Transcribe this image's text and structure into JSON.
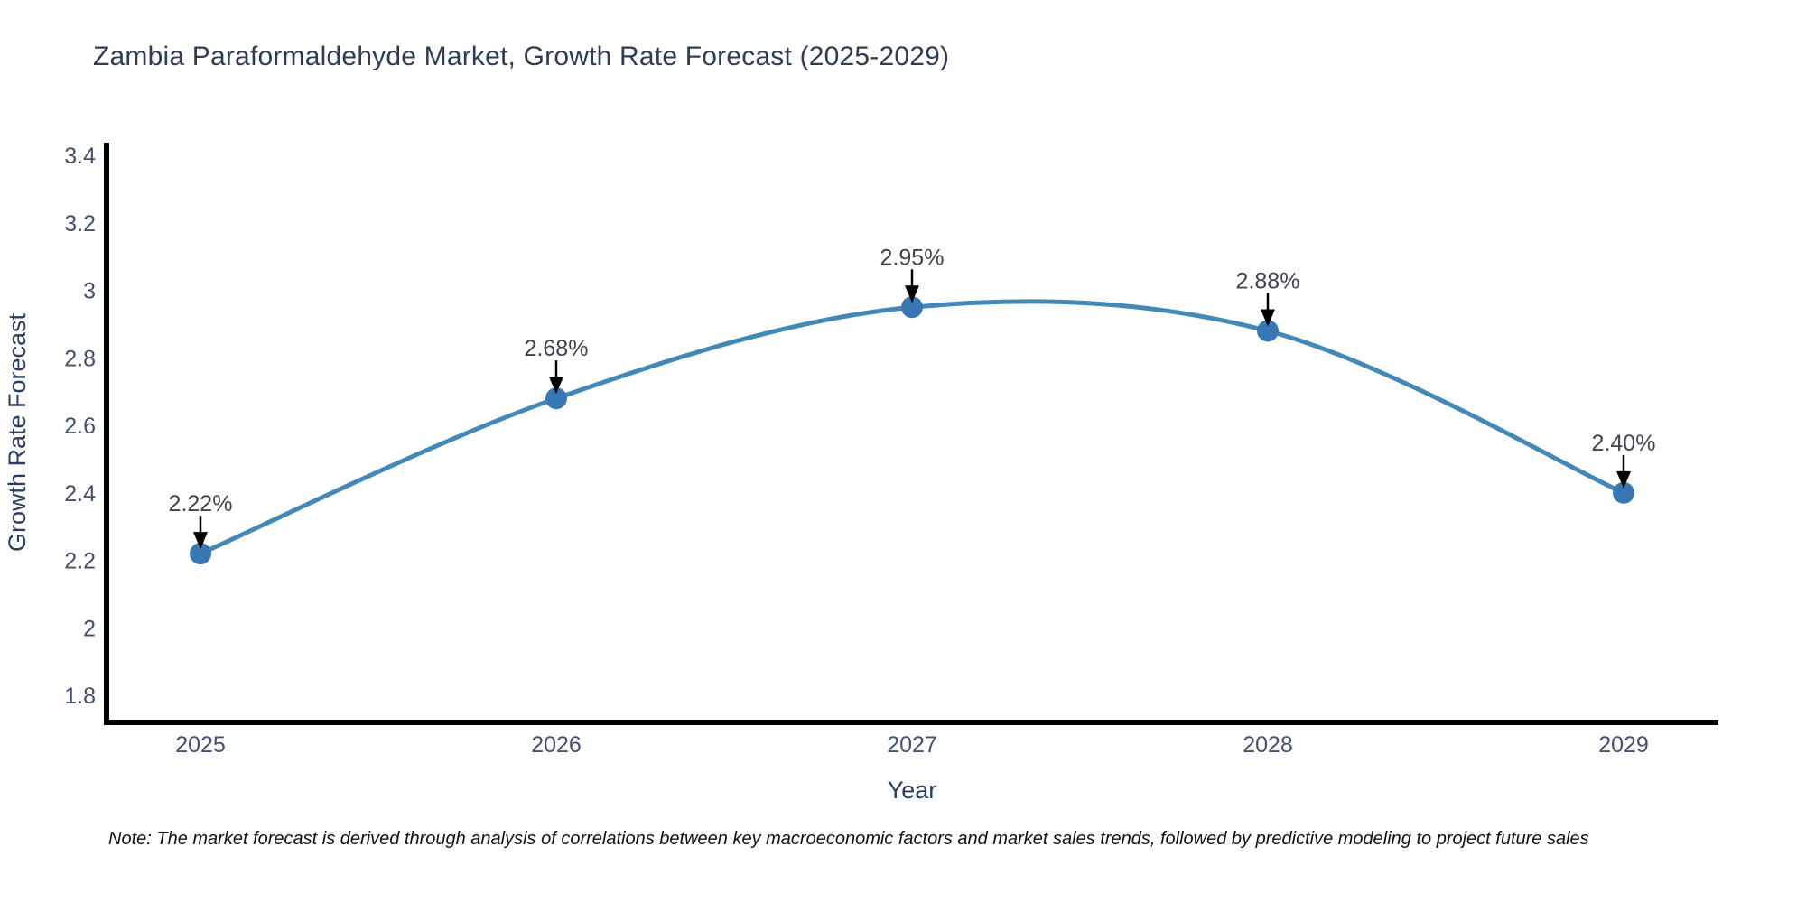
{
  "title": "Zambia Paraformaldehyde Market, Growth Rate Forecast (2025-2029)",
  "note": "Note: The market forecast is derived through analysis of correlations between key macroeconomic factors and market sales trends, followed by predictive modeling to project future sales",
  "chart_data": {
    "type": "line",
    "title": "Zambia Paraformaldehyde Market, Growth Rate Forecast (2025-2029)",
    "xlabel": "Year",
    "ylabel": "Growth Rate Forecast",
    "categories": [
      "2025",
      "2026",
      "2027",
      "2028",
      "2029"
    ],
    "series": [
      {
        "name": "Growth Rate Forecast",
        "values": [
          2.22,
          2.68,
          2.95,
          2.88,
          2.4
        ],
        "point_labels": [
          "2.22%",
          "2.68%",
          "2.95%",
          "2.88%",
          "2.40%"
        ]
      }
    ],
    "yticks": [
      1.8,
      2,
      2.2,
      2.4,
      2.6,
      2.8,
      3,
      3.2,
      3.4
    ],
    "ytick_labels": [
      "1.8",
      "2",
      "2.2",
      "2.4",
      "2.6",
      "2.8",
      "3",
      "3.2",
      "3.4"
    ],
    "ylim": [
      1.72,
      3.432
    ],
    "grid": false,
    "legend_position": "none",
    "line_style": "spline",
    "colors": {
      "line": "#4389b8",
      "marker": "#3877b4",
      "annotation_arrow": "#000000",
      "axis_line": "#000000",
      "tick_text": "#42516d",
      "title_text": "#2e3c54"
    }
  }
}
